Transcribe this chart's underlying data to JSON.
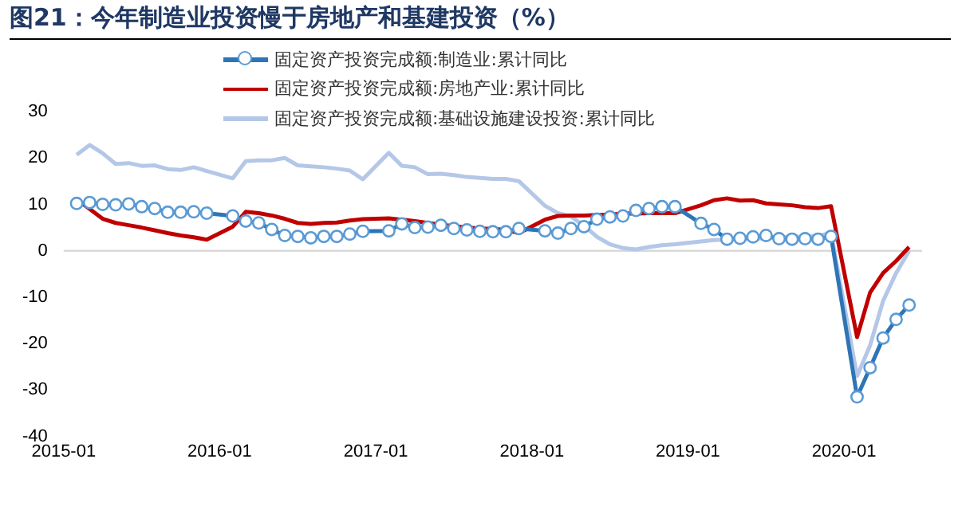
{
  "chart_data": {
    "type": "line",
    "title": "图21：今年制造业投资慢于房地产和基建投资（%）",
    "x": [
      "2015-02",
      "2015-03",
      "2015-04",
      "2015-05",
      "2015-06",
      "2015-07",
      "2015-08",
      "2015-09",
      "2015-10",
      "2015-11",
      "2015-12",
      "2016-02",
      "2016-03",
      "2016-04",
      "2016-05",
      "2016-06",
      "2016-07",
      "2016-08",
      "2016-09",
      "2016-10",
      "2016-11",
      "2016-12",
      "2017-02",
      "2017-03",
      "2017-04",
      "2017-05",
      "2017-06",
      "2017-07",
      "2017-08",
      "2017-09",
      "2017-10",
      "2017-11",
      "2017-12",
      "2018-02",
      "2018-03",
      "2018-04",
      "2018-05",
      "2018-06",
      "2018-07",
      "2018-08",
      "2018-09",
      "2018-10",
      "2018-11",
      "2018-12",
      "2019-02",
      "2019-03",
      "2019-04",
      "2019-05",
      "2019-06",
      "2019-07",
      "2019-08",
      "2019-09",
      "2019-10",
      "2019-11",
      "2019-12",
      "2020-02",
      "2020-03",
      "2020-04",
      "2020-05",
      "2020-06"
    ],
    "series": [
      {
        "name": "固定资产投资完成额:制造业:累计同比",
        "color": "#2e75b6",
        "marker": "circle",
        "values": [
          10.2,
          10.4,
          10.0,
          9.9,
          10.1,
          9.5,
          9.1,
          8.3,
          8.3,
          8.4,
          8.1,
          7.5,
          6.4,
          6.0,
          4.6,
          3.3,
          3.1,
          2.8,
          3.1,
          3.1,
          3.6,
          4.2,
          4.3,
          5.8,
          5.0,
          5.1,
          5.5,
          4.8,
          4.5,
          4.2,
          4.1,
          4.1,
          4.8,
          4.3,
          3.8,
          4.8,
          5.2,
          6.8,
          7.3,
          7.5,
          8.7,
          9.1,
          9.5,
          9.5,
          5.9,
          4.6,
          2.5,
          2.7,
          3.0,
          3.3,
          2.6,
          2.5,
          2.6,
          2.5,
          3.1,
          -31.5,
          -25.2,
          -18.8,
          -14.8,
          -11.7
        ]
      },
      {
        "name": "固定资产投资完成额:房地产业:累计同比",
        "color": "#c00000",
        "marker": "none",
        "values": [
          11.1,
          9.0,
          6.9,
          6.0,
          5.5,
          5.0,
          4.4,
          3.8,
          3.3,
          2.9,
          2.4,
          5.2,
          8.4,
          8.1,
          7.6,
          6.9,
          6.0,
          5.8,
          6.0,
          6.1,
          6.5,
          6.8,
          7.0,
          6.7,
          6.4,
          6.0,
          5.6,
          5.3,
          5.0,
          4.8,
          4.7,
          4.5,
          3.8,
          6.7,
          7.5,
          7.6,
          7.6,
          7.7,
          7.8,
          8.0,
          8.0,
          8.1,
          8.1,
          8.1,
          9.8,
          10.9,
          11.3,
          10.8,
          10.9,
          10.2,
          10.0,
          9.8,
          9.4,
          9.2,
          9.6,
          -18.6,
          -9.0,
          -4.8,
          -2.2,
          0.8
        ]
      },
      {
        "name": "固定资产投资完成额:基础设施建设投资:累计同比",
        "color": "#b4c7e7",
        "marker": "none",
        "values": [
          20.7,
          22.8,
          21.0,
          18.7,
          18.9,
          18.3,
          18.4,
          17.6,
          17.4,
          18.0,
          17.2,
          15.6,
          19.3,
          19.5,
          19.5,
          20.0,
          18.4,
          18.2,
          18.0,
          17.7,
          17.3,
          15.4,
          21.1,
          18.3,
          18.0,
          16.5,
          16.6,
          16.3,
          15.9,
          15.7,
          15.5,
          15.5,
          15.0,
          9.7,
          8.1,
          7.4,
          5.4,
          3.0,
          1.4,
          0.6,
          0.3,
          0.8,
          1.2,
          1.4,
          2.0,
          2.3,
          2.4,
          2.5,
          2.6,
          2.7,
          2.9,
          3.0,
          3.1,
          3.2,
          3.8,
          -27.0,
          -20.4,
          -10.8,
          -4.8,
          0.0
        ]
      }
    ],
    "xlim": [
      "2015-01",
      "2020-07"
    ],
    "xticks": [
      "2015-01",
      "2016-01",
      "2017-01",
      "2018-01",
      "2019-01",
      "2020-01"
    ],
    "ylim": [
      -40,
      30
    ],
    "yticks": [
      -40,
      -30,
      -20,
      -10,
      0,
      10,
      20,
      30
    ],
    "ref_lines": [
      {
        "axis": "y",
        "value": 0,
        "color": "#d9d9d9"
      }
    ],
    "grid": false,
    "legend": "top",
    "line_style": "solid"
  }
}
